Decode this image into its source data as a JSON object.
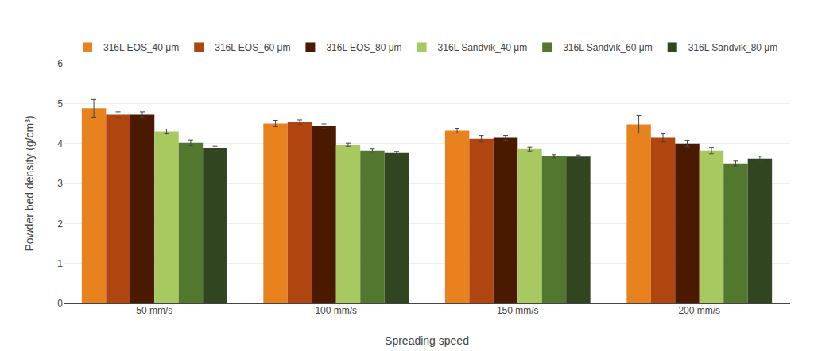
{
  "chart_data": {
    "type": "bar",
    "xlabel": "Spreading speed",
    "ylabel": "Powder bed density (g/cm³)",
    "categories": [
      "50 mm/s",
      "100 mm/s",
      "150 mm/s",
      "200 mm/s"
    ],
    "series": [
      {
        "name": "316L EOS_40 μm",
        "color": "#E8821E",
        "values": [
          4.88,
          4.5,
          4.32,
          4.48
        ],
        "errors": [
          0.22,
          0.08,
          0.06,
          0.22
        ]
      },
      {
        "name": "316L EOS_60 μm",
        "color": "#B04510",
        "values": [
          4.72,
          4.53,
          4.12,
          4.14
        ],
        "errors": [
          0.07,
          0.06,
          0.08,
          0.1
        ]
      },
      {
        "name": "316L EOS_80 μm",
        "color": "#4A1A00",
        "values": [
          4.72,
          4.43,
          4.14,
          4.0
        ],
        "errors": [
          0.07,
          0.06,
          0.06,
          0.08
        ]
      },
      {
        "name": "316L Sandvik_40 μm",
        "color": "#A8C860",
        "values": [
          4.3,
          3.97,
          3.86,
          3.82
        ],
        "errors": [
          0.06,
          0.04,
          0.05,
          0.08
        ]
      },
      {
        "name": "316L Sandvik_60 μm",
        "color": "#527830",
        "values": [
          4.02,
          3.82,
          3.68,
          3.5
        ],
        "errors": [
          0.07,
          0.04,
          0.04,
          0.06
        ]
      },
      {
        "name": "316L Sandvik_80 μm",
        "color": "#304520",
        "values": [
          3.88,
          3.76,
          3.67,
          3.62
        ],
        "errors": [
          0.05,
          0.04,
          0.04,
          0.06
        ]
      }
    ],
    "ylim": [
      0,
      6
    ],
    "yticks": [
      0,
      1,
      2,
      3,
      4,
      5,
      6
    ],
    "grid": true,
    "legend": "top"
  }
}
